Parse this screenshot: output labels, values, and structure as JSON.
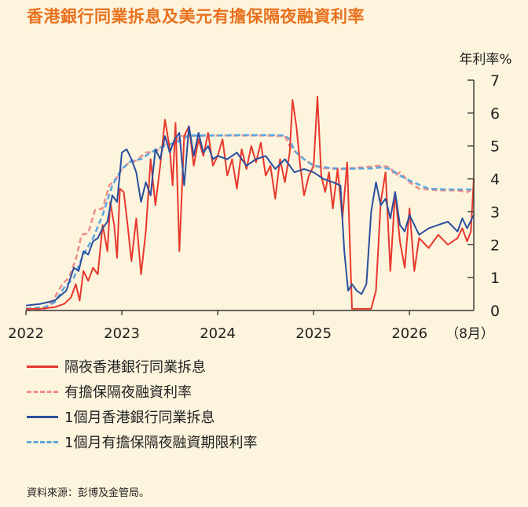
{
  "chart_data": {
    "type": "line",
    "title": "香港銀行同業拆息及美元有擔保隔夜融資利率",
    "ylabel": "年利率%",
    "ylim": [
      0,
      7
    ],
    "yticks": [
      "0",
      "1",
      "2",
      "3",
      "4",
      "5",
      "6",
      "7"
    ],
    "xlim": [
      2022.0,
      2026.67
    ],
    "xticks": [
      {
        "value": 2022,
        "label": "2022"
      },
      {
        "value": 2023,
        "label": "2023"
      },
      {
        "value": 2024,
        "label": "2024"
      },
      {
        "value": 2025,
        "label": "2025"
      },
      {
        "value": 2026,
        "label": "2026"
      }
    ],
    "x_end_label": "（8月）",
    "grid": false,
    "legend_position": "bottom-left",
    "series": [
      {
        "name": "隔夜香港銀行同業拆息",
        "color": "#e8382d",
        "style": "solid",
        "x": [
          2022.0,
          2022.15,
          2022.3,
          2022.4,
          2022.47,
          2022.52,
          2022.56,
          2022.6,
          2022.65,
          2022.7,
          2022.75,
          2022.8,
          2022.85,
          2022.88,
          2022.92,
          2022.95,
          2022.98,
          2023.02,
          2023.06,
          2023.1,
          2023.15,
          2023.2,
          2023.25,
          2023.3,
          2023.35,
          2023.4,
          2023.45,
          2023.5,
          2023.53,
          2023.56,
          2023.6,
          2023.65,
          2023.7,
          2023.75,
          2023.8,
          2023.85,
          2023.9,
          2023.95,
          2024.0,
          2024.05,
          2024.1,
          2024.15,
          2024.2,
          2024.25,
          2024.3,
          2024.35,
          2024.4,
          2024.45,
          2024.5,
          2024.55,
          2024.6,
          2024.65,
          2024.7,
          2024.75,
          2024.78,
          2024.82,
          2024.86,
          2024.9,
          2024.95,
          2025.0,
          2025.04,
          2025.08,
          2025.12,
          2025.16,
          2025.2,
          2025.25,
          2025.3,
          2025.35,
          2025.4,
          2025.5,
          2025.6,
          2025.65,
          2025.7,
          2025.75,
          2025.8,
          2025.85,
          2025.9,
          2025.95,
          2026.0,
          2026.05,
          2026.1,
          2026.2,
          2026.3,
          2026.4,
          2026.5,
          2026.55,
          2026.6,
          2026.64,
          2026.67
        ],
        "y": [
          0.05,
          0.05,
          0.1,
          0.2,
          0.4,
          0.8,
          0.3,
          1.2,
          0.9,
          1.3,
          1.1,
          2.6,
          1.8,
          3.3,
          2.6,
          1.6,
          3.7,
          3.6,
          2.6,
          1.5,
          2.8,
          1.1,
          2.4,
          4.6,
          3.2,
          4.4,
          5.8,
          4.9,
          3.8,
          5.7,
          1.8,
          5.3,
          5.6,
          4.4,
          5.2,
          4.7,
          5.4,
          4.4,
          4.7,
          5.2,
          4.1,
          4.6,
          3.7,
          4.9,
          4.3,
          5.0,
          4.5,
          5.1,
          4.1,
          4.4,
          3.4,
          4.6,
          3.9,
          4.8,
          6.4,
          5.6,
          4.4,
          3.5,
          4.1,
          4.4,
          6.5,
          4.1,
          3.6,
          4.2,
          3.1,
          4.3,
          2.8,
          4.5,
          0.05,
          0.05,
          0.05,
          0.6,
          3.3,
          4.2,
          1.2,
          3.6,
          2.1,
          1.3,
          3.1,
          1.2,
          2.2,
          1.9,
          2.3,
          2.0,
          2.2,
          2.5,
          2.1,
          2.4,
          4.0
        ]
      },
      {
        "name": "有擔保隔夜融資利率",
        "color": "#ee8f8a",
        "style": "dashed",
        "x": [
          2022.0,
          2022.2,
          2022.28,
          2022.38,
          2022.45,
          2022.52,
          2022.58,
          2022.65,
          2022.72,
          2022.8,
          2022.87,
          2022.95,
          2023.0,
          2023.08,
          2023.15,
          2023.25,
          2023.35,
          2023.45,
          2023.55,
          2023.6,
          2023.75,
          2024.0,
          2024.25,
          2024.5,
          2024.7,
          2024.75,
          2024.8,
          2024.9,
          2025.0,
          2025.1,
          2025.3,
          2025.5,
          2025.7,
          2025.8,
          2025.85,
          2025.9,
          2026.0,
          2026.1,
          2026.3,
          2026.5,
          2026.6,
          2026.67
        ],
        "y": [
          0.05,
          0.05,
          0.3,
          0.8,
          1.0,
          1.55,
          2.3,
          2.35,
          3.05,
          3.1,
          3.8,
          4.05,
          4.3,
          4.5,
          4.55,
          4.8,
          4.82,
          5.05,
          5.05,
          5.3,
          5.31,
          5.32,
          5.32,
          5.32,
          5.3,
          5.0,
          4.85,
          4.6,
          4.4,
          4.33,
          4.3,
          4.35,
          4.4,
          4.35,
          4.1,
          4.2,
          3.9,
          3.7,
          3.65,
          3.65,
          3.6,
          3.7
        ]
      },
      {
        "name": "1個月香港銀行同業拆息",
        "color": "#2a4f9e",
        "style": "solid",
        "x": [
          2022.0,
          2022.15,
          2022.3,
          2022.42,
          2022.5,
          2022.55,
          2022.6,
          2022.65,
          2022.7,
          2022.75,
          2022.8,
          2022.85,
          2022.9,
          2022.95,
          2023.0,
          2023.05,
          2023.1,
          2023.15,
          2023.2,
          2023.25,
          2023.3,
          2023.35,
          2023.4,
          2023.45,
          2023.5,
          2023.55,
          2023.6,
          2023.65,
          2023.7,
          2023.75,
          2023.8,
          2023.85,
          2023.9,
          2023.95,
          2024.0,
          2024.1,
          2024.2,
          2024.3,
          2024.4,
          2024.5,
          2024.6,
          2024.7,
          2024.8,
          2024.9,
          2025.0,
          2025.1,
          2025.2,
          2025.28,
          2025.32,
          2025.36,
          2025.4,
          2025.45,
          2025.5,
          2025.55,
          2025.6,
          2025.65,
          2025.7,
          2025.75,
          2025.8,
          2025.85,
          2025.9,
          2025.95,
          2026.0,
          2026.1,
          2026.2,
          2026.3,
          2026.4,
          2026.5,
          2026.55,
          2026.6,
          2026.67
        ],
        "y": [
          0.15,
          0.2,
          0.3,
          0.6,
          1.3,
          1.2,
          1.8,
          1.7,
          2.1,
          2.2,
          2.5,
          2.7,
          3.5,
          3.3,
          4.8,
          4.9,
          4.6,
          4.2,
          3.3,
          3.9,
          3.5,
          4.9,
          4.6,
          5.3,
          4.8,
          5.2,
          5.4,
          3.8,
          5.6,
          4.7,
          5.4,
          4.8,
          5.0,
          4.6,
          4.7,
          4.6,
          4.8,
          4.4,
          4.6,
          4.7,
          4.3,
          4.6,
          4.2,
          4.3,
          4.2,
          4.0,
          3.9,
          3.8,
          1.8,
          0.6,
          0.8,
          0.6,
          0.5,
          0.8,
          3.0,
          3.9,
          3.2,
          3.4,
          2.8,
          3.6,
          2.6,
          2.4,
          2.9,
          2.3,
          2.5,
          2.6,
          2.7,
          2.4,
          2.8,
          2.5,
          2.9
        ]
      },
      {
        "name": "1個月有擔保隔夜融資期限利率",
        "color": "#5ea6dd",
        "style": "dashed",
        "x": [
          2022.0,
          2022.2,
          2022.3,
          2022.4,
          2022.5,
          2022.6,
          2022.7,
          2022.8,
          2022.9,
          2023.0,
          2023.1,
          2023.2,
          2023.3,
          2023.4,
          2023.5,
          2023.6,
          2023.7,
          2024.0,
          2024.3,
          2024.6,
          2024.7,
          2024.75,
          2024.8,
          2024.9,
          2025.0,
          2025.2,
          2025.4,
          2025.6,
          2025.7,
          2025.8,
          2025.9,
          2026.0,
          2026.2,
          2026.4,
          2026.67
        ],
        "y": [
          0.05,
          0.1,
          0.25,
          0.7,
          1.0,
          1.7,
          2.2,
          2.9,
          3.8,
          4.3,
          4.55,
          4.6,
          4.8,
          4.95,
          5.05,
          5.15,
          5.32,
          5.32,
          5.33,
          5.33,
          5.32,
          5.2,
          4.85,
          4.6,
          4.4,
          4.32,
          4.31,
          4.32,
          4.35,
          4.3,
          4.1,
          3.95,
          3.7,
          3.68,
          3.68
        ]
      }
    ]
  },
  "source": "資料來源：彭博及金管局。"
}
